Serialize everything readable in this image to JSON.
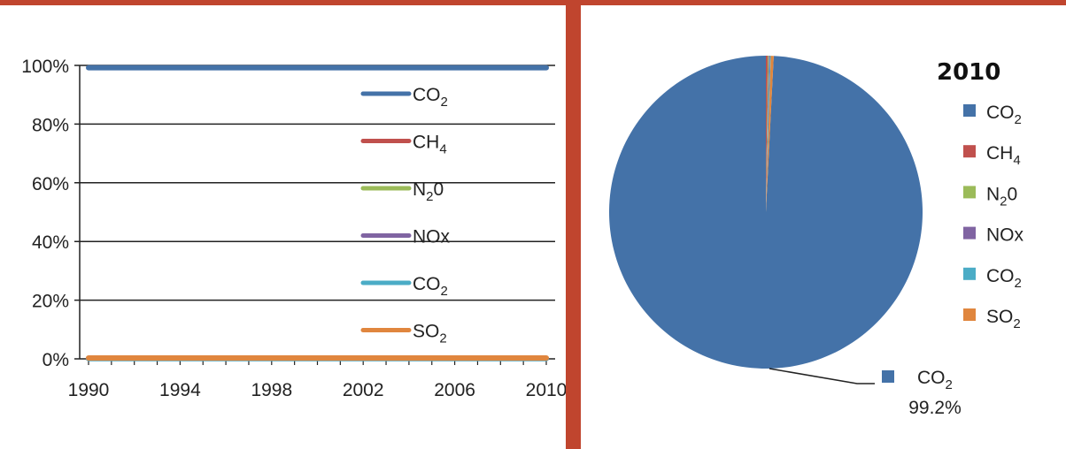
{
  "chart_data": [
    {
      "type": "line",
      "x": [
        1990,
        1991,
        1992,
        1993,
        1994,
        1995,
        1996,
        1997,
        1998,
        1999,
        2000,
        2001,
        2002,
        2003,
        2004,
        2005,
        2006,
        2007,
        2008,
        2009,
        2010
      ],
      "x_tick_labels": [
        "1990",
        "1994",
        "1998",
        "2002",
        "2006",
        "2010"
      ],
      "y_tick_labels": [
        "0%",
        "20%",
        "40%",
        "60%",
        "80%",
        "100%"
      ],
      "ylim": [
        0,
        100
      ],
      "grid": true,
      "legend_position": "right",
      "series": [
        {
          "name": "CO",
          "sub": "2",
          "color": "#4472a8",
          "values": [
            99.2,
            99.2,
            99.2,
            99.2,
            99.2,
            99.2,
            99.2,
            99.2,
            99.2,
            99.2,
            99.2,
            99.2,
            99.2,
            99.2,
            99.2,
            99.2,
            99.2,
            99.2,
            99.2,
            99.2,
            99.2
          ]
        },
        {
          "name": "CH",
          "sub": "4",
          "color": "#c0504d",
          "values": [
            0.2,
            0.2,
            0.2,
            0.2,
            0.2,
            0.2,
            0.2,
            0.2,
            0.2,
            0.2,
            0.2,
            0.2,
            0.2,
            0.2,
            0.2,
            0.2,
            0.2,
            0.2,
            0.2,
            0.2,
            0.2
          ]
        },
        {
          "name": "N",
          "sub": "2",
          "suffix": "0",
          "color": "#9bbb59",
          "values": [
            0.1,
            0.1,
            0.1,
            0.1,
            0.1,
            0.1,
            0.1,
            0.1,
            0.1,
            0.1,
            0.1,
            0.1,
            0.1,
            0.1,
            0.1,
            0.1,
            0.1,
            0.1,
            0.1,
            0.1,
            0.1
          ]
        },
        {
          "name": "NOx",
          "color": "#8064a2",
          "values": [
            0.1,
            0.1,
            0.1,
            0.1,
            0.1,
            0.1,
            0.1,
            0.1,
            0.1,
            0.1,
            0.1,
            0.1,
            0.1,
            0.1,
            0.1,
            0.1,
            0.1,
            0.1,
            0.1,
            0.1,
            0.1
          ]
        },
        {
          "name": "CO",
          "sub": "2",
          "color": "#4bacc6",
          "values": [
            0.1,
            0.1,
            0.1,
            0.1,
            0.1,
            0.1,
            0.1,
            0.1,
            0.1,
            0.1,
            0.1,
            0.1,
            0.1,
            0.1,
            0.1,
            0.1,
            0.1,
            0.1,
            0.1,
            0.1,
            0.1
          ]
        },
        {
          "name": "SO",
          "sub": "2",
          "color": "#e0863e",
          "values": [
            0.3,
            0.3,
            0.3,
            0.3,
            0.3,
            0.3,
            0.3,
            0.3,
            0.3,
            0.3,
            0.3,
            0.3,
            0.3,
            0.3,
            0.3,
            0.3,
            0.3,
            0.3,
            0.3,
            0.3,
            0.3
          ]
        }
      ]
    },
    {
      "type": "pie",
      "title": "2010",
      "legend_position": "right",
      "slices": [
        {
          "name": "CO",
          "sub": "2",
          "color": "#4472a8",
          "value": 99.2
        },
        {
          "name": "CH",
          "sub": "4",
          "color": "#c0504d",
          "value": 0.2
        },
        {
          "name": "N",
          "sub": "2",
          "suffix": "0",
          "color": "#9bbb59",
          "value": 0.1
        },
        {
          "name": "NOx",
          "color": "#8064a2",
          "value": 0.1
        },
        {
          "name": "CO",
          "sub": "2",
          "color": "#4bacc6",
          "value": 0.1
        },
        {
          "name": "SO",
          "sub": "2",
          "color": "#e0863e",
          "value": 0.3
        }
      ],
      "data_label": {
        "name": "CO",
        "sub": "2",
        "value_text": "99.2%",
        "color": "#4472a8"
      }
    }
  ]
}
